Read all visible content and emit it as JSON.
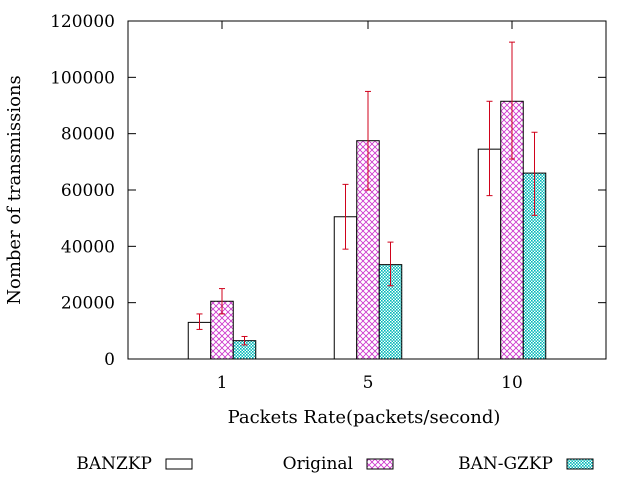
{
  "chart_data": {
    "type": "bar",
    "title": "",
    "xlabel": "Packets Rate(packets/second)",
    "ylabel": "Nomber of transmissions",
    "categories": [
      "1",
      "5",
      "10"
    ],
    "ylim": [
      0,
      120000
    ],
    "yticks": [
      "0",
      "20000",
      "40000",
      "60000",
      "80000",
      "100000",
      "120000"
    ],
    "grid": false,
    "legend_position": "bottom",
    "error_bar_color": "#d0021b",
    "series": [
      {
        "name": "BANZKP",
        "pattern": "empty",
        "color": "#000000",
        "values": [
          13000,
          50500,
          74500
        ],
        "err_low": [
          10500,
          39000,
          58000
        ],
        "err_high": [
          16000,
          62000,
          91500
        ]
      },
      {
        "name": "Original",
        "pattern": "crosshatch",
        "color": "#cc33cc",
        "values": [
          20500,
          77500,
          91500
        ],
        "err_low": [
          16000,
          60000,
          71000
        ],
        "err_high": [
          25000,
          95000,
          112500
        ]
      },
      {
        "name": "BAN-GZKP",
        "pattern": "dots",
        "color": "#00b8b8",
        "values": [
          6500,
          33500,
          66000
        ],
        "err_low": [
          5000,
          26000,
          51000
        ],
        "err_high": [
          8000,
          41500,
          80500
        ]
      }
    ]
  }
}
